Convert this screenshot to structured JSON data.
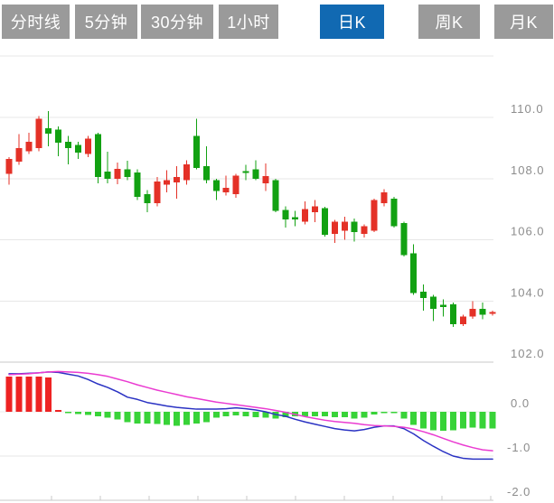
{
  "tabbar": {
    "tabs": [
      {
        "name": "tab-timeline",
        "label": "分时线",
        "active": false
      },
      {
        "name": "tab-5min",
        "label": "5分钟",
        "active": false
      },
      {
        "name": "tab-30min",
        "label": "30分钟",
        "active": false
      },
      {
        "name": "tab-1hour",
        "label": "1小时",
        "active": false
      },
      {
        "name": "tab-daily-k",
        "label": "日K",
        "active": true
      },
      {
        "name": "tab-weekly-k",
        "label": "周K",
        "active": false
      },
      {
        "name": "tab-monthly-k",
        "label": "月K",
        "active": false
      }
    ]
  },
  "chart_data": {
    "type": "candlestick",
    "title": "",
    "panels": [
      "price-candlestick",
      "macd-indicator"
    ],
    "price_axis": {
      "tick_labels": [
        "110.0",
        "108.0",
        "106.0",
        "104.0",
        "102.0"
      ],
      "tick_values": [
        110,
        108,
        106,
        104,
        102
      ],
      "unlabeled_gridline": 112,
      "range": [
        102,
        112
      ],
      "side": "right",
      "grid": true
    },
    "macd_axis": {
      "tick_labels": [
        "0.0",
        "-1.0",
        "-2.0"
      ],
      "tick_values": [
        0,
        -1,
        -2
      ],
      "range": [
        -2.05,
        1.0
      ],
      "side": "right",
      "grid": true
    },
    "candles_ohlc": [
      [
        108.15,
        108.7,
        107.8,
        108.65
      ],
      [
        108.55,
        109.45,
        108.45,
        109.0
      ],
      [
        108.9,
        109.5,
        108.8,
        109.2
      ],
      [
        109.0,
        110.05,
        108.9,
        109.95
      ],
      [
        109.65,
        110.2,
        109.05,
        109.47
      ],
      [
        109.6,
        109.7,
        108.73,
        109.17
      ],
      [
        109.2,
        109.4,
        108.47,
        109.0
      ],
      [
        109.1,
        109.2,
        108.65,
        108.85
      ],
      [
        108.8,
        109.4,
        108.7,
        109.3
      ],
      [
        109.45,
        109.5,
        107.85,
        108.05
      ],
      [
        108.23,
        108.88,
        107.85,
        108.0
      ],
      [
        108.0,
        108.53,
        107.82,
        108.32
      ],
      [
        108.3,
        108.58,
        107.95,
        108.06
      ],
      [
        108.2,
        108.3,
        107.3,
        107.4
      ],
      [
        107.5,
        107.62,
        106.9,
        107.2
      ],
      [
        107.2,
        108.05,
        107.1,
        107.9
      ],
      [
        107.8,
        108.27,
        107.55,
        107.95
      ],
      [
        107.88,
        108.4,
        107.35,
        108.05
      ],
      [
        107.95,
        108.6,
        107.8,
        108.47
      ],
      [
        109.4,
        109.95,
        108.3,
        108.35
      ],
      [
        108.4,
        109.05,
        107.85,
        107.95
      ],
      [
        107.95,
        108.0,
        107.3,
        107.6
      ],
      [
        107.55,
        108.1,
        107.45,
        107.7
      ],
      [
        107.5,
        108.15,
        107.38,
        108.1
      ],
      [
        108.25,
        108.45,
        107.95,
        108.18
      ],
      [
        108.3,
        108.6,
        107.95,
        108.0
      ],
      [
        107.85,
        108.5,
        107.6,
        108.08
      ],
      [
        107.95,
        108.0,
        106.9,
        106.95
      ],
      [
        106.97,
        107.1,
        106.4,
        106.67
      ],
      [
        106.74,
        106.95,
        106.45,
        106.66
      ],
      [
        106.6,
        107.25,
        106.5,
        107.0
      ],
      [
        106.9,
        107.3,
        106.58,
        107.1
      ],
      [
        107.04,
        107.08,
        106.1,
        106.16
      ],
      [
        106.2,
        106.65,
        105.9,
        106.6
      ],
      [
        106.3,
        106.75,
        106.0,
        106.6
      ],
      [
        106.6,
        106.7,
        105.95,
        106.25
      ],
      [
        106.2,
        106.5,
        106.08,
        106.45
      ],
      [
        106.3,
        107.35,
        106.25,
        107.3
      ],
      [
        107.2,
        107.65,
        107.1,
        107.55
      ],
      [
        107.35,
        107.4,
        106.4,
        106.45
      ],
      [
        106.55,
        106.6,
        105.45,
        105.5
      ],
      [
        105.56,
        105.85,
        104.2,
        104.26
      ],
      [
        104.3,
        104.55,
        103.68,
        104.1
      ],
      [
        104.15,
        104.2,
        103.35,
        103.75
      ],
      [
        103.88,
        104.05,
        103.5,
        103.8
      ],
      [
        103.9,
        103.95,
        103.15,
        103.25
      ],
      [
        103.25,
        103.55,
        103.18,
        103.5
      ],
      [
        103.5,
        104.0,
        103.42,
        103.75
      ],
      [
        103.75,
        103.95,
        103.4,
        103.55
      ],
      [
        103.58,
        103.68,
        103.52,
        103.64
      ]
    ],
    "macd": {
      "hist": [
        0.8,
        0.8,
        0.8,
        0.8,
        0.78,
        0.04,
        -0.03,
        -0.05,
        -0.07,
        -0.1,
        -0.13,
        -0.17,
        -0.23,
        -0.27,
        -0.27,
        -0.28,
        -0.3,
        -0.32,
        -0.3,
        -0.27,
        -0.23,
        -0.13,
        -0.1,
        -0.08,
        -0.1,
        -0.12,
        -0.13,
        -0.15,
        -0.12,
        -0.1,
        -0.1,
        -0.1,
        -0.1,
        -0.12,
        -0.12,
        -0.15,
        -0.13,
        -0.06,
        -0.02,
        -0.03,
        -0.15,
        -0.3,
        -0.38,
        -0.42,
        -0.43,
        -0.42,
        -0.38,
        -0.36,
        -0.38,
        -0.38
      ],
      "dif": [
        0.86,
        0.86,
        0.87,
        0.88,
        0.9,
        0.89,
        0.85,
        0.81,
        0.73,
        0.63,
        0.55,
        0.45,
        0.33,
        0.28,
        0.21,
        0.17,
        0.13,
        0.1,
        0.08,
        0.06,
        0.06,
        0.06,
        0.07,
        0.09,
        0.07,
        0.04,
        0.0,
        -0.06,
        -0.1,
        -0.17,
        -0.23,
        -0.28,
        -0.33,
        -0.38,
        -0.41,
        -0.43,
        -0.4,
        -0.35,
        -0.32,
        -0.32,
        -0.38,
        -0.5,
        -0.65,
        -0.78,
        -0.9,
        -1.0,
        -1.05,
        -1.07,
        -1.07,
        -1.07
      ],
      "dea": [
        0.84,
        0.85,
        0.86,
        0.88,
        0.9,
        0.91,
        0.9,
        0.89,
        0.87,
        0.84,
        0.8,
        0.74,
        0.68,
        0.61,
        0.55,
        0.49,
        0.44,
        0.39,
        0.34,
        0.3,
        0.26,
        0.22,
        0.19,
        0.16,
        0.13,
        0.1,
        0.07,
        0.03,
        -0.01,
        -0.06,
        -0.11,
        -0.15,
        -0.19,
        -0.22,
        -0.24,
        -0.26,
        -0.29,
        -0.31,
        -0.32,
        -0.33,
        -0.35,
        -0.39,
        -0.45,
        -0.52,
        -0.6,
        -0.68,
        -0.75,
        -0.81,
        -0.86,
        -0.88
      ]
    },
    "colors": {
      "up": "#e43127",
      "down": "#12a112",
      "hist_up": "#ee2222",
      "hist_down": "#38d338",
      "dif_line": "#2a32c3",
      "dea_line": "#ea3bd1",
      "grid": "#e7e7e7",
      "grid_strong": "#c8c8c8",
      "axis_label": "#8c8c8c",
      "tab_bg": "#9a9a9a",
      "tab_active_bg": "#1169b2",
      "tab_text": "#ffffff"
    }
  }
}
